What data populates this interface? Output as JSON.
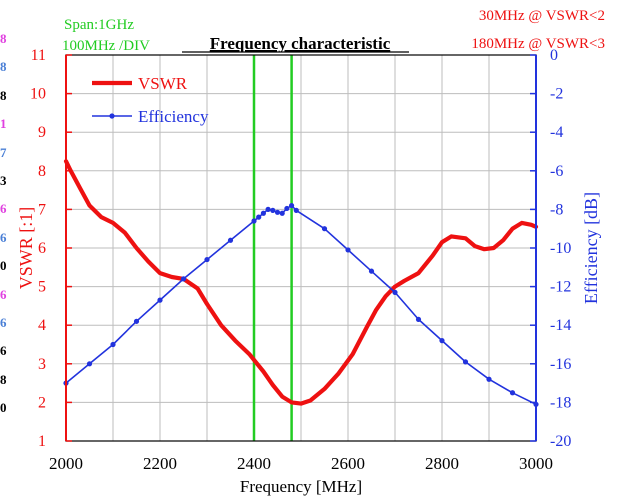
{
  "left_edge": [
    {
      "text": "8",
      "color": "#e040e0"
    },
    {
      "text": "8",
      "color": "#4a7fd6"
    },
    {
      "text": "8",
      "color": "#000000"
    },
    {
      "text": "1",
      "color": "#e040e0"
    },
    {
      "text": "7",
      "color": "#4a7fd6"
    },
    {
      "text": "3",
      "color": "#000000"
    },
    {
      "text": "6",
      "color": "#e040e0"
    },
    {
      "text": "6",
      "color": "#4a7fd6"
    },
    {
      "text": "0",
      "color": "#000000"
    },
    {
      "text": "6",
      "color": "#e040e0"
    },
    {
      "text": "6",
      "color": "#4a7fd6"
    },
    {
      "text": "6",
      "color": "#000000"
    },
    {
      "text": "8",
      "color": "#000000"
    },
    {
      "text": "0",
      "color": "#000000"
    }
  ],
  "chart_data": {
    "type": "line",
    "title": "Frequency characteristic",
    "xlabel": "Frequency [MHz]",
    "ylabel": "VSWR [:1]",
    "y2label": "Efficiency [dB]",
    "xlim": [
      2000,
      3000
    ],
    "ylim": [
      1,
      11
    ],
    "y2lim": [
      -20,
      0
    ],
    "xticks": [
      2000,
      2200,
      2400,
      2600,
      2800,
      3000
    ],
    "yticks": [
      1,
      2,
      3,
      4,
      5,
      6,
      7,
      8,
      9,
      10,
      11
    ],
    "y2ticks": [
      0,
      -2,
      -4,
      -6,
      -8,
      -10,
      -12,
      -14,
      -16,
      -18,
      -20
    ],
    "grid": true,
    "legend": "top-left",
    "annotations": {
      "span": "Span:1GHz",
      "div": "100MHz /DIV",
      "bw1": "30MHz @ VSWR<2",
      "bw2": "180MHz @ VSWR<3"
    },
    "markers_x": [
      2400,
      2480
    ],
    "marker_color": "#22cc22",
    "series": [
      {
        "name": "VSWR",
        "axis": "left",
        "color": "#ee1111",
        "markers": false,
        "x": [
          2000,
          2010,
          2030,
          2050,
          2075,
          2100,
          2125,
          2150,
          2175,
          2200,
          2225,
          2250,
          2280,
          2300,
          2330,
          2360,
          2390,
          2420,
          2440,
          2460,
          2480,
          2500,
          2520,
          2550,
          2580,
          2610,
          2640,
          2660,
          2680,
          2700,
          2720,
          2750,
          2780,
          2800,
          2820,
          2850,
          2870,
          2890,
          2910,
          2930,
          2950,
          2970,
          2990,
          3000
        ],
        "y": [
          8.25,
          8.0,
          7.55,
          7.1,
          6.8,
          6.65,
          6.4,
          6.0,
          5.65,
          5.35,
          5.25,
          5.2,
          4.95,
          4.55,
          4.0,
          3.6,
          3.25,
          2.8,
          2.45,
          2.15,
          2.0,
          1.97,
          2.05,
          2.35,
          2.75,
          3.25,
          3.95,
          4.4,
          4.75,
          5.0,
          5.15,
          5.35,
          5.8,
          6.15,
          6.3,
          6.25,
          6.05,
          5.97,
          6.0,
          6.2,
          6.5,
          6.65,
          6.6,
          6.55
        ]
      },
      {
        "name": "Efficiency",
        "axis": "right",
        "color": "#2233dd",
        "markers": true,
        "x": [
          2000,
          2050,
          2100,
          2150,
          2200,
          2250,
          2300,
          2350,
          2400,
          2410,
          2420,
          2430,
          2440,
          2450,
          2460,
          2470,
          2480,
          2490,
          2550,
          2600,
          2650,
          2700,
          2750,
          2800,
          2850,
          2900,
          2950,
          3000
        ],
        "y": [
          -17.0,
          -16.0,
          -15.0,
          -13.8,
          -12.7,
          -11.6,
          -10.6,
          -9.6,
          -8.6,
          -8.4,
          -8.2,
          -8.0,
          -8.05,
          -8.15,
          -8.2,
          -7.95,
          -7.8,
          -8.05,
          -9.0,
          -10.1,
          -11.2,
          -12.3,
          -13.7,
          -14.8,
          -15.9,
          -16.8,
          -17.5,
          -18.1
        ]
      }
    ]
  }
}
